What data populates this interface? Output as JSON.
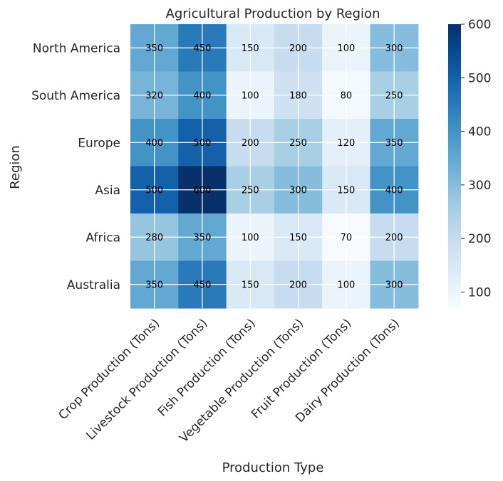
{
  "chart_data": {
    "type": "heatmap",
    "title": "Agricultural Production by Region",
    "xlabel": "Production Type",
    "ylabel": "Region",
    "x_categories": [
      "Crop Production (Tons)",
      "Livestock Production (Tons)",
      "Fish Production (Tons)",
      "Vegetable Production (Tons)",
      "Fruit Production (Tons)",
      "Dairy Production (Tons)"
    ],
    "y_categories": [
      "North America",
      "South America",
      "Europe",
      "Asia",
      "Africa",
      "Australia"
    ],
    "values": [
      [
        350,
        450,
        150,
        200,
        100,
        300
      ],
      [
        320,
        400,
        100,
        180,
        80,
        250
      ],
      [
        400,
        500,
        200,
        250,
        120,
        350
      ],
      [
        500,
        600,
        250,
        300,
        150,
        400
      ],
      [
        280,
        350,
        100,
        150,
        70,
        200
      ],
      [
        350,
        450,
        150,
        200,
        100,
        300
      ]
    ],
    "colorbar": {
      "min": 70,
      "max": 600,
      "ticks": [
        100,
        200,
        300,
        400,
        500,
        600
      ]
    },
    "colormap": "Blues",
    "grid": true
  }
}
